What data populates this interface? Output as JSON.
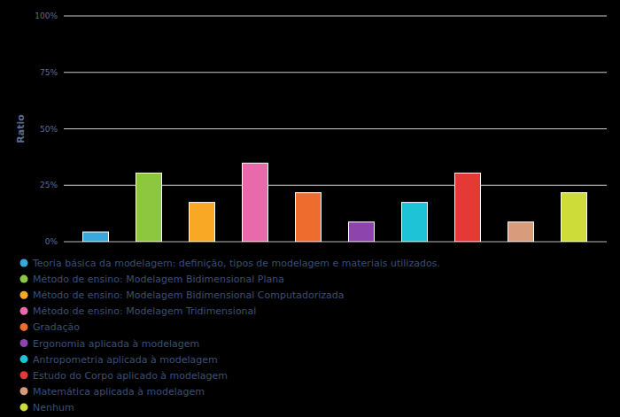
{
  "chart_data": {
    "type": "bar",
    "y_label": "Ratio",
    "categories": [
      "Teoria básica da modelagem: definição, tipos de modelagem e materiais utilizados.",
      "Método de ensino: Modelagem Bidimensional Plana",
      "Método de ensino: Modelagem Bidimensional Computadorizada",
      "Método de ensino: Modelagem Tridimensional",
      "Gradação",
      "Ergonomia aplicada à modelagem",
      "Antropometria aplicada à modelagem",
      "Estudo do Corpo aplicado à modelagem",
      "Matemática aplicada à modelagem",
      "Nenhum"
    ],
    "values": [
      4.3,
      30.4,
      17.4,
      34.8,
      21.7,
      8.7,
      17.4,
      30.4,
      8.7,
      21.7
    ],
    "colors": [
      "#3aa8dd",
      "#8dc63f",
      "#f9a825",
      "#e86aaa",
      "#ef6c2f",
      "#8e44ad",
      "#1ec3d6",
      "#e53935",
      "#d89c7c",
      "#cddc39"
    ],
    "ylim": [
      0,
      100
    ],
    "yticks": [
      {
        "value": 0,
        "label": "0%"
      },
      {
        "value": 25,
        "label": "25%"
      },
      {
        "value": 50,
        "label": "50%"
      },
      {
        "value": 75,
        "label": "75%"
      },
      {
        "value": 100,
        "label": "100%"
      }
    ],
    "grid": true,
    "legend": "bottom",
    "tick_labels": "y"
  }
}
